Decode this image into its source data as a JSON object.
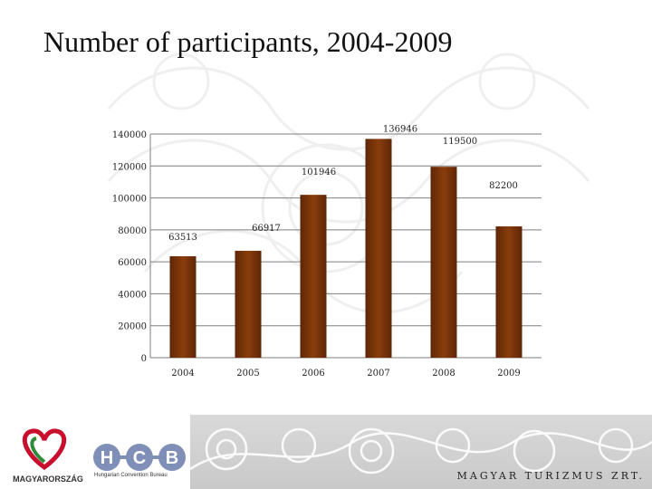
{
  "title": "Number of participants, 2004-2009",
  "chart_data": {
    "type": "bar",
    "categories": [
      "2004",
      "2005",
      "2006",
      "2007",
      "2008",
      "2009"
    ],
    "values": [
      63513,
      66917,
      101946,
      136946,
      119500,
      82200
    ],
    "data_labels": [
      "63513",
      "66917",
      "101946",
      "136946",
      "119500",
      "82200"
    ],
    "yticks": [
      "0",
      "20000",
      "40000",
      "60000",
      "80000",
      "100000",
      "120000",
      "140000"
    ],
    "ylim": [
      0,
      140000
    ],
    "grid": true,
    "legend": "none",
    "bar_color": "#8a3d0c"
  },
  "footer": {
    "company": "MAGYAR TURIZMUS ZRT.",
    "logo_left_text": "MAGYARORSZÁG",
    "logo_hcb_subtitle": "Hungarian Convention Bureau",
    "logo_hcb_letters": [
      "H",
      "C",
      "B"
    ]
  }
}
